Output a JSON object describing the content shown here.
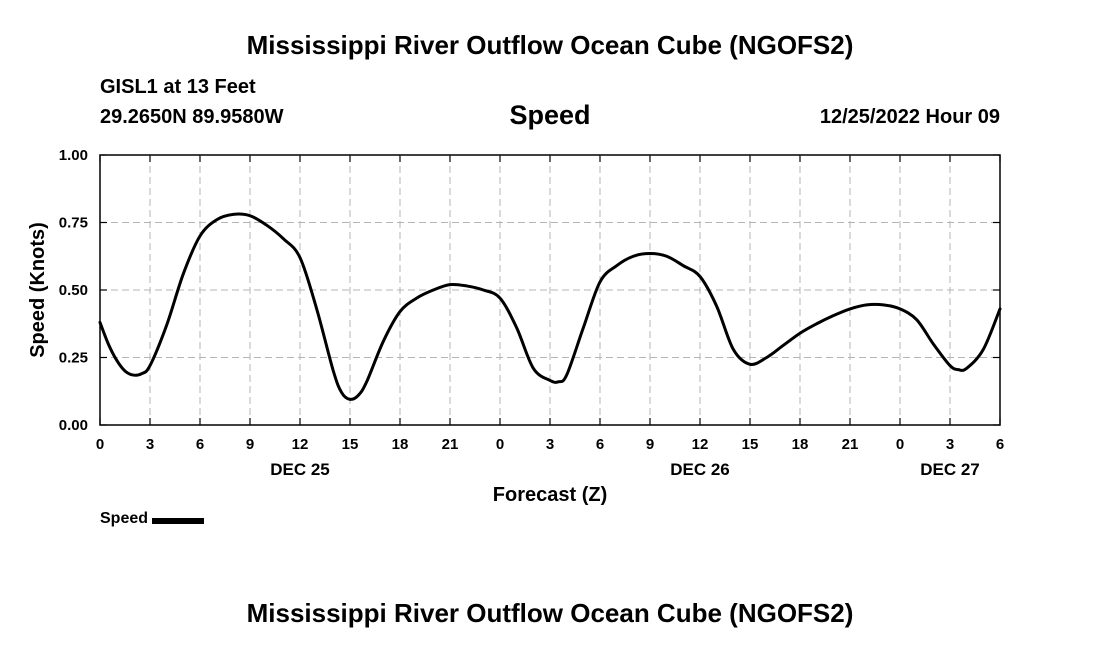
{
  "header": {
    "title": "Mississippi River Outflow Ocean Cube (NGOFS2)",
    "station": "GISL1 at 13 Feet",
    "coords": "29.2650N  89.9580W",
    "chart_title": "Speed",
    "datetime": "12/25/2022 Hour 09"
  },
  "footer": {
    "title": "Mississippi River Outflow Ocean Cube (NGOFS2)"
  },
  "legend": {
    "label": "Speed",
    "color": "#000000"
  },
  "chart_data": {
    "type": "line",
    "title": "Speed",
    "xlabel": "Forecast (Z)",
    "ylabel": "Speed (Knots)",
    "xlim": [
      0,
      54
    ],
    "ylim": [
      0,
      1
    ],
    "grid": true,
    "x_tick_values": [
      0,
      3,
      6,
      9,
      12,
      15,
      18,
      21,
      24,
      27,
      30,
      33,
      36,
      39,
      42,
      45,
      48,
      51,
      54
    ],
    "x_tick_labels": [
      "0",
      "3",
      "6",
      "9",
      "12",
      "15",
      "18",
      "21",
      "0",
      "3",
      "6",
      "9",
      "12",
      "15",
      "18",
      "21",
      "0",
      "3",
      "6"
    ],
    "y_tick_values": [
      0,
      0.25,
      0.5,
      0.75,
      1.0
    ],
    "y_tick_labels": [
      "0.00",
      "0.25",
      "0.50",
      "0.75",
      "1.00"
    ],
    "day_labels": [
      {
        "x": 12,
        "label": "DEC 25"
      },
      {
        "x": 36,
        "label": "DEC 26"
      },
      {
        "x": 51,
        "label": "DEC 27"
      }
    ],
    "series": [
      {
        "name": "Speed",
        "color": "#000000",
        "x": [
          0,
          0.5,
          1,
          1.5,
          2,
          2.5,
          3,
          4,
          5,
          6,
          7,
          8,
          9,
          10,
          11,
          12,
          13,
          14,
          14.5,
          15,
          15.5,
          16,
          17,
          18,
          19,
          20,
          21,
          22,
          23,
          24,
          25,
          26,
          27,
          27.5,
          28,
          29,
          30,
          31,
          32,
          33,
          34,
          35,
          36,
          37,
          38,
          39,
          40,
          41,
          42,
          43,
          44,
          45,
          46,
          47,
          48,
          49,
          50,
          51,
          51.5,
          52,
          53,
          54
        ],
        "values": [
          0.38,
          0.3,
          0.24,
          0.2,
          0.185,
          0.19,
          0.22,
          0.37,
          0.56,
          0.7,
          0.76,
          0.78,
          0.775,
          0.74,
          0.69,
          0.62,
          0.43,
          0.2,
          0.12,
          0.095,
          0.11,
          0.16,
          0.31,
          0.42,
          0.47,
          0.5,
          0.52,
          0.515,
          0.5,
          0.47,
          0.36,
          0.21,
          0.165,
          0.16,
          0.185,
          0.36,
          0.53,
          0.59,
          0.625,
          0.635,
          0.625,
          0.59,
          0.55,
          0.44,
          0.28,
          0.225,
          0.25,
          0.295,
          0.34,
          0.375,
          0.405,
          0.43,
          0.445,
          0.445,
          0.43,
          0.39,
          0.3,
          0.22,
          0.205,
          0.21,
          0.28,
          0.43
        ]
      }
    ]
  }
}
